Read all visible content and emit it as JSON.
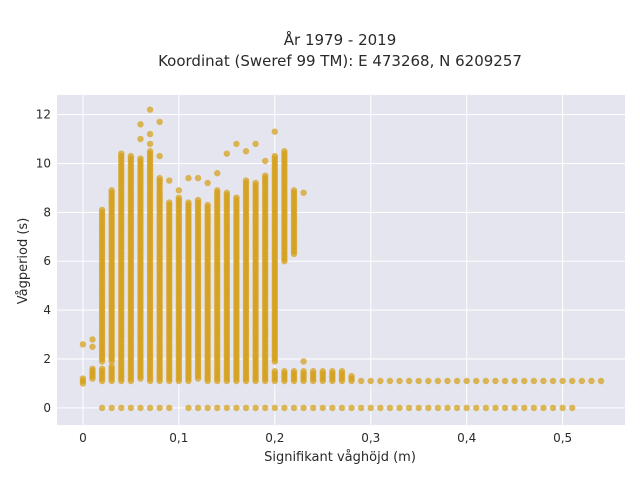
{
  "chart_data": {
    "type": "scatter",
    "title_line1": "År 1979 - 2019",
    "title_line2": "Koordinat (Sweref 99 TM): E 473268, N 6209257",
    "xlabel": "Signifikant våghöjd (m)",
    "ylabel": "Vågperiod (s)",
    "xlim": [
      -0.027,
      0.565
    ],
    "ylim": [
      -0.7,
      12.8
    ],
    "x_ticks": [
      0,
      0.1,
      0.2,
      0.3,
      0.4,
      0.5
    ],
    "x_tick_labels": [
      "0",
      "0,1",
      "0,2",
      "0,3",
      "0,4",
      "0,5"
    ],
    "y_ticks": [
      0,
      2,
      4,
      6,
      8,
      10,
      12
    ],
    "y_tick_labels": [
      "0",
      "2",
      "4",
      "6",
      "8",
      "10",
      "12"
    ],
    "grid": true,
    "marker_color": "#D4A017",
    "plot_background": "#E5E5EF",
    "series": [
      {
        "x_step": 0.01,
        "columns": [
          {
            "x": 0.0,
            "ranges": [
              [
                1.0,
                1.2,
                0.1
              ]
            ],
            "points": [
              2.6
            ]
          },
          {
            "x": 0.01,
            "ranges": [
              [
                1.2,
                1.6,
                0.1
              ]
            ],
            "points": [
              2.5,
              2.8
            ]
          },
          {
            "x": 0.02,
            "ranges": [
              [
                1.1,
                1.6,
                0.1
              ],
              [
                1.9,
                8.1,
                0.1
              ]
            ],
            "points": [
              0
            ]
          },
          {
            "x": 0.03,
            "ranges": [
              [
                1.1,
                1.7,
                0.1
              ],
              [
                1.9,
                8.9,
                0.1
              ]
            ],
            "points": [
              0
            ]
          },
          {
            "x": 0.04,
            "ranges": [
              [
                1.1,
                10.4,
                0.1
              ]
            ],
            "points": [
              0
            ]
          },
          {
            "x": 0.05,
            "ranges": [
              [
                1.1,
                10.3,
                0.1
              ]
            ],
            "points": [
              0
            ]
          },
          {
            "x": 0.06,
            "ranges": [
              [
                1.2,
                10.2,
                0.1
              ]
            ],
            "points": [
              0,
              11.6,
              11.0
            ]
          },
          {
            "x": 0.07,
            "ranges": [
              [
                1.1,
                10.5,
                0.1
              ]
            ],
            "points": [
              0,
              12.2,
              11.2,
              10.8
            ]
          },
          {
            "x": 0.08,
            "ranges": [
              [
                1.1,
                9.4,
                0.1
              ]
            ],
            "points": [
              11.7,
              10.3,
              0
            ]
          },
          {
            "x": 0.09,
            "ranges": [
              [
                1.1,
                8.4,
                0.1
              ]
            ],
            "points": [
              9.3,
              0
            ]
          },
          {
            "x": 0.1,
            "ranges": [
              [
                1.1,
                8.6,
                0.1
              ]
            ],
            "points": [
              8.9
            ]
          },
          {
            "x": 0.11,
            "ranges": [
              [
                1.1,
                8.4,
                0.1
              ]
            ],
            "points": [
              9.4,
              0
            ]
          },
          {
            "x": 0.12,
            "ranges": [
              [
                1.2,
                8.5,
                0.1
              ]
            ],
            "points": [
              9.4,
              0
            ]
          },
          {
            "x": 0.13,
            "ranges": [
              [
                1.1,
                8.3,
                0.1
              ]
            ],
            "points": [
              9.2,
              0
            ]
          },
          {
            "x": 0.14,
            "ranges": [
              [
                1.1,
                8.9,
                0.1
              ]
            ],
            "points": [
              9.6,
              0
            ]
          },
          {
            "x": 0.15,
            "ranges": [
              [
                1.1,
                8.8,
                0.1
              ]
            ],
            "points": [
              10.4,
              0
            ]
          },
          {
            "x": 0.16,
            "ranges": [
              [
                1.1,
                8.6,
                0.1
              ]
            ],
            "points": [
              10.8,
              0
            ]
          },
          {
            "x": 0.17,
            "ranges": [
              [
                1.1,
                9.3,
                0.1
              ]
            ],
            "points": [
              10.5,
              0
            ]
          },
          {
            "x": 0.18,
            "ranges": [
              [
                1.1,
                9.2,
                0.1
              ]
            ],
            "points": [
              10.8,
              0
            ]
          },
          {
            "x": 0.19,
            "ranges": [
              [
                1.1,
                9.5,
                0.1
              ]
            ],
            "points": [
              10.1,
              0
            ]
          },
          {
            "x": 0.2,
            "ranges": [
              [
                1.1,
                1.5,
                0.1
              ],
              [
                1.9,
                10.3,
                0.1
              ]
            ],
            "points": [
              11.3,
              0
            ]
          },
          {
            "x": 0.21,
            "ranges": [
              [
                1.1,
                1.5,
                0.1
              ],
              [
                6.0,
                10.5,
                0.1
              ]
            ],
            "points": [
              0
            ]
          },
          {
            "x": 0.22,
            "ranges": [
              [
                1.1,
                1.5,
                0.1
              ],
              [
                6.3,
                8.9,
                0.1
              ]
            ],
            "points": [
              0
            ]
          },
          {
            "x": 0.23,
            "ranges": [
              [
                1.1,
                1.5,
                0.1
              ]
            ],
            "points": [
              1.9,
              8.8,
              0
            ]
          },
          {
            "x": 0.24,
            "ranges": [
              [
                1.1,
                1.5,
                0.1
              ]
            ],
            "points": [
              0
            ]
          },
          {
            "x": 0.25,
            "ranges": [
              [
                1.1,
                1.5,
                0.1
              ]
            ],
            "points": [
              0
            ]
          },
          {
            "x": 0.26,
            "ranges": [
              [
                1.1,
                1.5,
                0.1
              ]
            ],
            "points": [
              0
            ]
          },
          {
            "x": 0.27,
            "ranges": [
              [
                1.1,
                1.5,
                0.1
              ]
            ],
            "points": [
              0
            ]
          },
          {
            "x": 0.28,
            "ranges": [
              [
                1.1,
                1.3,
                0.1
              ]
            ],
            "points": [
              0
            ]
          },
          {
            "x": 0.29,
            "ranges": [],
            "points": [
              1.1,
              0
            ]
          },
          {
            "x": 0.3,
            "ranges": [],
            "points": [
              1.1,
              0
            ]
          },
          {
            "x": 0.31,
            "ranges": [],
            "points": [
              1.1,
              0
            ]
          },
          {
            "x": 0.32,
            "ranges": [],
            "points": [
              1.1,
              0
            ]
          },
          {
            "x": 0.33,
            "ranges": [],
            "points": [
              1.1,
              0
            ]
          },
          {
            "x": 0.34,
            "ranges": [],
            "points": [
              1.1,
              0
            ]
          },
          {
            "x": 0.35,
            "ranges": [],
            "points": [
              1.1,
              0
            ]
          },
          {
            "x": 0.36,
            "ranges": [],
            "points": [
              1.1,
              0
            ]
          },
          {
            "x": 0.37,
            "ranges": [],
            "points": [
              1.1,
              0
            ]
          },
          {
            "x": 0.38,
            "ranges": [],
            "points": [
              1.1,
              0
            ]
          },
          {
            "x": 0.39,
            "ranges": [],
            "points": [
              1.1,
              0
            ]
          },
          {
            "x": 0.4,
            "ranges": [],
            "points": [
              1.1,
              0
            ]
          },
          {
            "x": 0.41,
            "ranges": [],
            "points": [
              1.1,
              0
            ]
          },
          {
            "x": 0.42,
            "ranges": [],
            "points": [
              1.1,
              0
            ]
          },
          {
            "x": 0.43,
            "ranges": [],
            "points": [
              1.1,
              0
            ]
          },
          {
            "x": 0.44,
            "ranges": [],
            "points": [
              1.1,
              0
            ]
          },
          {
            "x": 0.45,
            "ranges": [],
            "points": [
              1.1,
              0
            ]
          },
          {
            "x": 0.46,
            "ranges": [],
            "points": [
              1.1,
              0
            ]
          },
          {
            "x": 0.47,
            "ranges": [],
            "points": [
              1.1,
              0
            ]
          },
          {
            "x": 0.48,
            "ranges": [],
            "points": [
              1.1,
              0
            ]
          },
          {
            "x": 0.49,
            "ranges": [],
            "points": [
              1.1,
              0
            ]
          },
          {
            "x": 0.5,
            "ranges": [],
            "points": [
              1.1,
              0
            ]
          },
          {
            "x": 0.51,
            "ranges": [],
            "points": [
              1.1,
              0
            ]
          },
          {
            "x": 0.52,
            "ranges": [],
            "points": [
              1.1
            ]
          },
          {
            "x": 0.53,
            "ranges": [],
            "points": [
              1.1
            ]
          },
          {
            "x": 0.54,
            "ranges": [],
            "points": [
              1.1
            ]
          }
        ]
      }
    ]
  }
}
